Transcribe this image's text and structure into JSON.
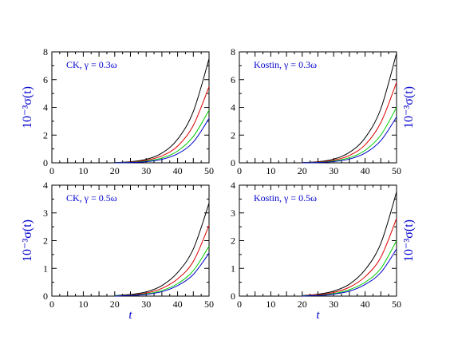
{
  "chart_data": [
    {
      "type": "line",
      "annotation": "CK, γ = 0.3ω",
      "ylabel": "10⁻³σ(t)",
      "ylabel_side": "left",
      "xlabel": "",
      "xlim": [
        0,
        50
      ],
      "ylim": [
        0,
        8
      ],
      "xticks": [
        0,
        10,
        20,
        30,
        40,
        50
      ],
      "yticks": [
        0,
        2,
        4,
        6,
        8
      ],
      "x": [
        20,
        25,
        30,
        35,
        40,
        45,
        50
      ],
      "series": [
        {
          "color": "#000000",
          "values": [
            0.02,
            0.08,
            0.25,
            0.7,
            1.7,
            3.7,
            7.5
          ]
        },
        {
          "color": "#dd0000",
          "values": [
            0.01,
            0.05,
            0.18,
            0.5,
            1.2,
            2.7,
            5.5
          ]
        },
        {
          "color": "#00cc00",
          "values": [
            0.01,
            0.03,
            0.12,
            0.35,
            0.85,
            1.9,
            3.8
          ]
        },
        {
          "color": "#0000cc",
          "values": [
            0.0,
            0.02,
            0.08,
            0.25,
            0.65,
            1.5,
            3.2
          ]
        }
      ]
    },
    {
      "type": "line",
      "annotation": "Kostin, γ = 0.3ω",
      "ylabel": "10⁻³σ(t)",
      "ylabel_side": "right",
      "xlabel": "",
      "xlim": [
        0,
        50
      ],
      "ylim": [
        0,
        8
      ],
      "xticks": [
        0,
        10,
        20,
        30,
        40,
        50
      ],
      "yticks": [
        0,
        2,
        4,
        6,
        8
      ],
      "x": [
        20,
        25,
        30,
        35,
        40,
        45,
        50
      ],
      "series": [
        {
          "color": "#000000",
          "values": [
            0.02,
            0.08,
            0.27,
            0.75,
            1.8,
            3.9,
            7.9
          ]
        },
        {
          "color": "#dd0000",
          "values": [
            0.01,
            0.05,
            0.19,
            0.53,
            1.3,
            2.9,
            5.8
          ]
        },
        {
          "color": "#00cc00",
          "values": [
            0.01,
            0.03,
            0.13,
            0.37,
            0.9,
            2.0,
            4.0
          ]
        },
        {
          "color": "#0000cc",
          "values": [
            0.0,
            0.02,
            0.09,
            0.27,
            0.7,
            1.6,
            3.3
          ]
        }
      ]
    },
    {
      "type": "line",
      "annotation": "CK, γ = 0.5ω",
      "ylabel": "10⁻³σ(t)",
      "ylabel_side": "left",
      "xlabel": "t",
      "xlim": [
        0,
        50
      ],
      "ylim": [
        0,
        4
      ],
      "xticks": [
        0,
        10,
        20,
        30,
        40,
        50
      ],
      "yticks": [
        0,
        1,
        2,
        3,
        4
      ],
      "x": [
        20,
        25,
        30,
        35,
        40,
        45,
        50
      ],
      "series": [
        {
          "color": "#000000",
          "values": [
            0.02,
            0.06,
            0.15,
            0.38,
            0.85,
            1.7,
            3.35
          ]
        },
        {
          "color": "#dd0000",
          "values": [
            0.01,
            0.04,
            0.11,
            0.28,
            0.62,
            1.25,
            2.55
          ]
        },
        {
          "color": "#00cc00",
          "values": [
            0.01,
            0.03,
            0.08,
            0.2,
            0.45,
            0.92,
            1.8
          ]
        },
        {
          "color": "#0000cc",
          "values": [
            0.0,
            0.02,
            0.06,
            0.16,
            0.38,
            0.78,
            1.55
          ]
        }
      ]
    },
    {
      "type": "line",
      "annotation": "Kostin, γ = 0.5ω",
      "ylabel": "10⁻³σ(t)",
      "ylabel_side": "right",
      "xlabel": "t",
      "xlim": [
        0,
        50
      ],
      "ylim": [
        0,
        4
      ],
      "xticks": [
        0,
        10,
        20,
        30,
        40,
        50
      ],
      "yticks": [
        0,
        1,
        2,
        3,
        4
      ],
      "x": [
        20,
        25,
        30,
        35,
        40,
        45,
        50
      ],
      "series": [
        {
          "color": "#000000",
          "values": [
            0.02,
            0.07,
            0.18,
            0.43,
            0.95,
            1.9,
            3.75
          ]
        },
        {
          "color": "#dd0000",
          "values": [
            0.01,
            0.05,
            0.13,
            0.32,
            0.7,
            1.4,
            2.8
          ]
        },
        {
          "color": "#00cc00",
          "values": [
            0.01,
            0.03,
            0.09,
            0.23,
            0.5,
            1.0,
            2.0
          ]
        },
        {
          "color": "#0000cc",
          "values": [
            0.0,
            0.02,
            0.07,
            0.18,
            0.42,
            0.85,
            1.7
          ]
        }
      ]
    }
  ]
}
